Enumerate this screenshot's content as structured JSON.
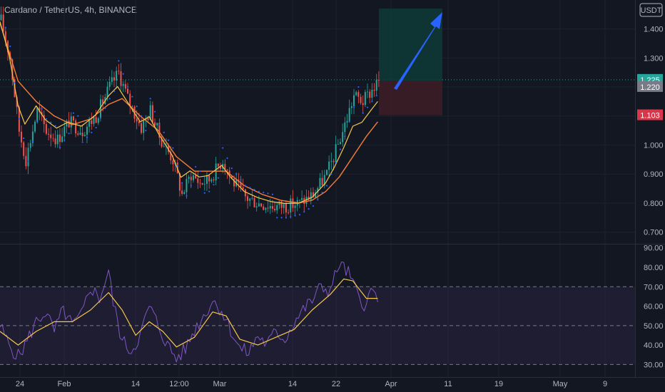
{
  "header": {
    "symbol": "Cardano / TetherUS",
    "interval": "4h",
    "exchange": "BINANCE",
    "quote_currency_button": "USDT"
  },
  "colors": {
    "background": "#131722",
    "grid": "#1e222d",
    "ema_orange": "#f57c3a",
    "sma_yellow": "#f7c84a",
    "psar_blue": "#2962ff",
    "rsi_line": "#7e57c2",
    "rsi_ma": "#f7c84a",
    "rsi_band": "#7e57c2",
    "profit_zone": "#0e3b36",
    "loss_zone": "#3d1d26",
    "arrow": "#2962ff",
    "badge_price": "#26a69a",
    "badge_entry": "#787b86",
    "badge_stop": "#d9364a"
  },
  "chart_data": [
    {
      "type": "candlestick",
      "title": "Cardano / TetherUS, 4h, BINANCE",
      "y_ticks": [
        "1.400",
        "1.300",
        "1.000",
        "0.900",
        "0.800",
        "0.700"
      ],
      "x_ticks": [
        "24",
        "Feb",
        "14",
        "12:00",
        "Mar",
        "14",
        "22",
        "Apr",
        "11",
        "19",
        "May",
        "9"
      ],
      "ylim": [
        0.66,
        1.48
      ],
      "price_path": [
        {
          "x": 0,
          "y": 1.43
        },
        {
          "x": 4,
          "y": 1.3
        },
        {
          "x": 8,
          "y": 1.05
        },
        {
          "x": 11,
          "y": 0.95
        },
        {
          "x": 16,
          "y": 1.12
        },
        {
          "x": 20,
          "y": 1.05
        },
        {
          "x": 25,
          "y": 1.02
        },
        {
          "x": 30,
          "y": 1.08
        },
        {
          "x": 36,
          "y": 1.05
        },
        {
          "x": 42,
          "y": 1.1
        },
        {
          "x": 48,
          "y": 1.2
        },
        {
          "x": 52,
          "y": 1.25
        },
        {
          "x": 56,
          "y": 1.16
        },
        {
          "x": 62,
          "y": 1.06
        },
        {
          "x": 66,
          "y": 1.12
        },
        {
          "x": 70,
          "y": 1.03
        },
        {
          "x": 76,
          "y": 0.95
        },
        {
          "x": 80,
          "y": 0.83
        },
        {
          "x": 84,
          "y": 0.9
        },
        {
          "x": 88,
          "y": 0.87
        },
        {
          "x": 92,
          "y": 0.88
        },
        {
          "x": 98,
          "y": 0.95
        },
        {
          "x": 102,
          "y": 0.88
        },
        {
          "x": 108,
          "y": 0.82
        },
        {
          "x": 114,
          "y": 0.8
        },
        {
          "x": 120,
          "y": 0.79
        },
        {
          "x": 126,
          "y": 0.79
        },
        {
          "x": 132,
          "y": 0.8
        },
        {
          "x": 138,
          "y": 0.83
        },
        {
          "x": 144,
          "y": 0.9
        },
        {
          "x": 148,
          "y": 0.98
        },
        {
          "x": 152,
          "y": 1.07
        },
        {
          "x": 156,
          "y": 1.17
        },
        {
          "x": 160,
          "y": 1.15
        },
        {
          "x": 164,
          "y": 1.19
        },
        {
          "x": 167,
          "y": 1.22
        }
      ],
      "ema_path": [
        {
          "x": 0,
          "y": 1.42
        },
        {
          "x": 8,
          "y": 1.22
        },
        {
          "x": 16,
          "y": 1.15
        },
        {
          "x": 24,
          "y": 1.1
        },
        {
          "x": 32,
          "y": 1.07
        },
        {
          "x": 40,
          "y": 1.09
        },
        {
          "x": 48,
          "y": 1.14
        },
        {
          "x": 54,
          "y": 1.16
        },
        {
          "x": 62,
          "y": 1.1
        },
        {
          "x": 70,
          "y": 1.05
        },
        {
          "x": 78,
          "y": 0.96
        },
        {
          "x": 86,
          "y": 0.91
        },
        {
          "x": 94,
          "y": 0.91
        },
        {
          "x": 100,
          "y": 0.91
        },
        {
          "x": 108,
          "y": 0.86
        },
        {
          "x": 116,
          "y": 0.83
        },
        {
          "x": 124,
          "y": 0.81
        },
        {
          "x": 132,
          "y": 0.8
        },
        {
          "x": 138,
          "y": 0.81
        },
        {
          "x": 144,
          "y": 0.84
        },
        {
          "x": 150,
          "y": 0.89
        },
        {
          "x": 156,
          "y": 0.96
        },
        {
          "x": 162,
          "y": 1.03
        },
        {
          "x": 167,
          "y": 1.08
        }
      ],
      "rsi_panel": {
        "y_ticks": [
          "90.00",
          "80.00",
          "70.00",
          "60.00",
          "50.00",
          "40.00",
          "30.00"
        ],
        "ylim": [
          25,
          91
        ],
        "band": [
          30,
          70
        ],
        "midline": 50,
        "rsi_path": [
          {
            "x": 0,
            "y": 50
          },
          {
            "x": 4,
            "y": 40
          },
          {
            "x": 8,
            "y": 34
          },
          {
            "x": 12,
            "y": 42
          },
          {
            "x": 16,
            "y": 52
          },
          {
            "x": 20,
            "y": 57
          },
          {
            "x": 24,
            "y": 47
          },
          {
            "x": 28,
            "y": 58
          },
          {
            "x": 32,
            "y": 50
          },
          {
            "x": 36,
            "y": 55
          },
          {
            "x": 40,
            "y": 70
          },
          {
            "x": 44,
            "y": 64
          },
          {
            "x": 48,
            "y": 78
          },
          {
            "x": 50,
            "y": 62
          },
          {
            "x": 54,
            "y": 42
          },
          {
            "x": 58,
            "y": 37
          },
          {
            "x": 62,
            "y": 45
          },
          {
            "x": 66,
            "y": 60
          },
          {
            "x": 70,
            "y": 50
          },
          {
            "x": 74,
            "y": 40
          },
          {
            "x": 78,
            "y": 33
          },
          {
            "x": 82,
            "y": 38
          },
          {
            "x": 86,
            "y": 48
          },
          {
            "x": 90,
            "y": 55
          },
          {
            "x": 94,
            "y": 63
          },
          {
            "x": 98,
            "y": 58
          },
          {
            "x": 102,
            "y": 48
          },
          {
            "x": 106,
            "y": 38
          },
          {
            "x": 110,
            "y": 36
          },
          {
            "x": 114,
            "y": 45
          },
          {
            "x": 118,
            "y": 40
          },
          {
            "x": 122,
            "y": 47
          },
          {
            "x": 126,
            "y": 43
          },
          {
            "x": 130,
            "y": 52
          },
          {
            "x": 134,
            "y": 58
          },
          {
            "x": 138,
            "y": 63
          },
          {
            "x": 142,
            "y": 70
          },
          {
            "x": 146,
            "y": 68
          },
          {
            "x": 150,
            "y": 82
          },
          {
            "x": 154,
            "y": 77
          },
          {
            "x": 158,
            "y": 66
          },
          {
            "x": 162,
            "y": 60
          },
          {
            "x": 164,
            "y": 68
          },
          {
            "x": 167,
            "y": 65
          }
        ],
        "rsi_ma_path": [
          {
            "x": 0,
            "y": 47
          },
          {
            "x": 8,
            "y": 40
          },
          {
            "x": 16,
            "y": 47
          },
          {
            "x": 24,
            "y": 52
          },
          {
            "x": 32,
            "y": 52
          },
          {
            "x": 40,
            "y": 58
          },
          {
            "x": 48,
            "y": 67
          },
          {
            "x": 54,
            "y": 58
          },
          {
            "x": 60,
            "y": 45
          },
          {
            "x": 66,
            "y": 52
          },
          {
            "x": 72,
            "y": 47
          },
          {
            "x": 78,
            "y": 39
          },
          {
            "x": 86,
            "y": 44
          },
          {
            "x": 94,
            "y": 57
          },
          {
            "x": 100,
            "y": 55
          },
          {
            "x": 106,
            "y": 43
          },
          {
            "x": 114,
            "y": 40
          },
          {
            "x": 122,
            "y": 44
          },
          {
            "x": 130,
            "y": 48
          },
          {
            "x": 138,
            "y": 58
          },
          {
            "x": 146,
            "y": 66
          },
          {
            "x": 152,
            "y": 74
          },
          {
            "x": 156,
            "y": 73
          },
          {
            "x": 162,
            "y": 64
          },
          {
            "x": 167,
            "y": 64
          }
        ]
      },
      "position": {
        "entry": "1.220",
        "target_price": 1.47,
        "stop": "1.103",
        "current": "1.225"
      }
    }
  ]
}
